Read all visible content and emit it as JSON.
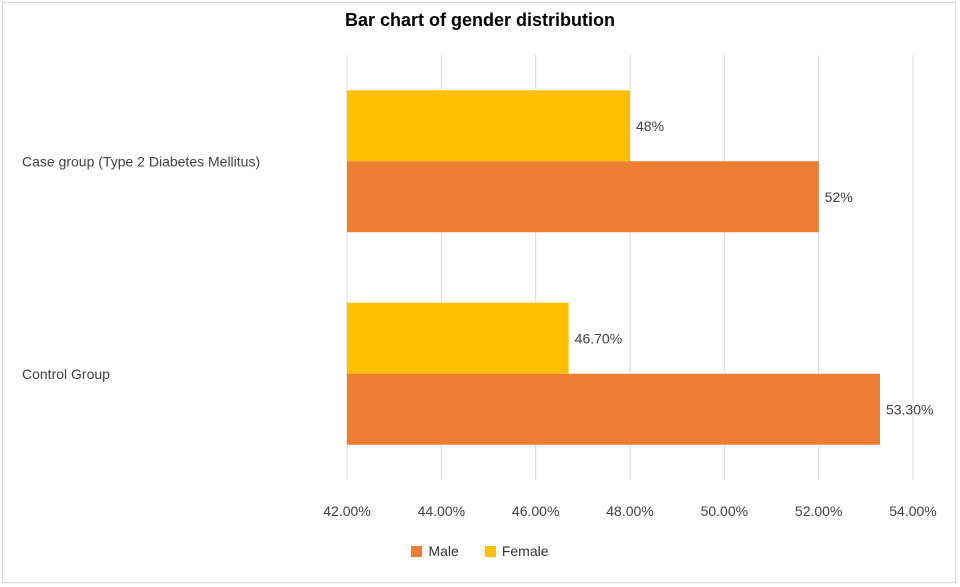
{
  "chart_data": {
    "type": "bar",
    "orientation": "horizontal",
    "title": "Bar chart of gender distribution",
    "categories": [
      "Case group (Type 2 Diabetes Mellitus)",
      "Control Group"
    ],
    "series": [
      {
        "name": "Male",
        "values": [
          52.0,
          53.3
        ],
        "labels": [
          "52%",
          "53.30%"
        ],
        "color": "#ED7D31"
      },
      {
        "name": "Female",
        "values": [
          48.0,
          46.7
        ],
        "labels": [
          "48%",
          "46.70%"
        ],
        "color": "#FFC000"
      }
    ],
    "xlim": [
      42,
      54
    ],
    "xticks": [
      42,
      44,
      46,
      48,
      50,
      52,
      54
    ],
    "xtick_labels": [
      "42.00%",
      "44.00%",
      "46.00%",
      "48.00%",
      "50.00%",
      "52.00%",
      "54.00%"
    ],
    "grid": "vertical",
    "legend": "bottom"
  }
}
